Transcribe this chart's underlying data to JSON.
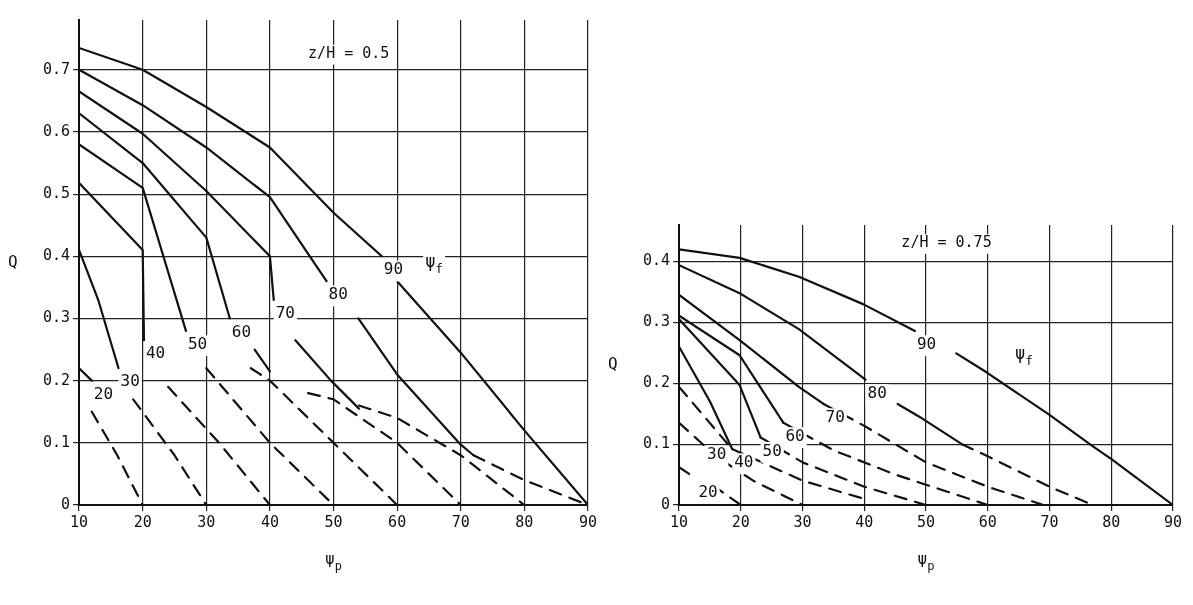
{
  "chart_data": [
    {
      "type": "line",
      "xlabel": "ψ$_{p}$",
      "ylabel": "Q",
      "xlim": [
        10,
        90
      ],
      "ylim": [
        0,
        0.78
      ],
      "xticks": [
        10,
        20,
        30,
        40,
        50,
        60,
        70,
        80,
        90
      ],
      "yticks": [
        0,
        0.1,
        0.2,
        0.3,
        0.4,
        0.5,
        0.6,
        0.7
      ],
      "grid": true,
      "legend": false,
      "marker": "none",
      "line_style": "solid",
      "annotations": [
        "z/H = 0.5",
        "ψ$_{f}$"
      ],
      "series": [
        {
          "name": "90",
          "color": "#111111",
          "x": [
            10,
            20,
            30,
            40,
            50,
            57.6,
            59,
            60,
            70,
            80,
            90
          ],
          "values": [
            0.735,
            0.7,
            0.64,
            0.575,
            0.47,
            0.4,
            null,
            0.36,
            0.245,
            0.12,
            0
          ]
        },
        {
          "name": "80",
          "color": "#111111",
          "x": [
            10,
            20,
            30,
            40,
            48.9,
            51,
            53.9,
            60,
            70,
            72
          ],
          "values": [
            0.7,
            0.643,
            0.575,
            0.495,
            0.36,
            null,
            0.3,
            0.21,
            0.097,
            0.08
          ]
        },
        {
          "name": "70",
          "color": "#111111",
          "x": [
            10,
            20,
            30,
            40,
            40.6,
            42,
            44,
            49.6,
            54
          ],
          "values": [
            0.665,
            0.597,
            0.505,
            0.4,
            0.33,
            null,
            0.265,
            0.2,
            0.155
          ]
        },
        {
          "name": "60",
          "color": "#111111",
          "x": [
            10,
            20,
            30,
            33.7,
            35,
            37.6,
            40
          ],
          "values": [
            0.63,
            0.55,
            0.43,
            0.3,
            null,
            0.25,
            0.215
          ]
        },
        {
          "name": "50",
          "color": "#111111",
          "x": [
            10,
            20,
            26.8
          ],
          "values": [
            0.58,
            0.51,
            0.28
          ]
        },
        {
          "name": "40",
          "color": "#111111",
          "x": [
            10,
            20,
            20.2
          ],
          "values": [
            0.518,
            0.41,
            0.265
          ]
        },
        {
          "name": "30",
          "color": "#111111",
          "x": [
            10,
            13,
            16.2
          ],
          "values": [
            0.41,
            0.33,
            0.22
          ]
        },
        {
          "name": "20",
          "color": "#111111",
          "x": [
            10,
            12
          ],
          "values": [
            0.22,
            0.2
          ]
        },
        {
          "color": "#111111",
          "line_style": "dashed",
          "x": [
            12,
            16,
            20
          ],
          "values": [
            0.15,
            0.08,
            0
          ]
        },
        {
          "color": "#111111",
          "line_style": "dashed",
          "x": [
            18.5,
            25,
            30
          ],
          "values": [
            0.17,
            0.08,
            0
          ]
        },
        {
          "color": "#111111",
          "line_style": "dashed",
          "x": [
            24,
            32,
            40
          ],
          "values": [
            0.19,
            0.1,
            0
          ]
        },
        {
          "color": "#111111",
          "line_style": "dashed",
          "x": [
            30,
            40,
            50
          ],
          "values": [
            0.22,
            0.1,
            0
          ]
        },
        {
          "color": "#111111",
          "line_style": "dashed",
          "x": [
            37,
            40,
            50,
            60
          ],
          "values": [
            0.22,
            0.2,
            0.1,
            0
          ]
        },
        {
          "color": "#111111",
          "line_style": "dashed",
          "x": [
            46,
            50,
            60,
            70
          ],
          "values": [
            0.18,
            0.17,
            0.1,
            0
          ]
        },
        {
          "color": "#111111",
          "line_style": "dashed",
          "x": [
            54,
            60,
            70,
            80
          ],
          "values": [
            0.16,
            0.14,
            0.08,
            0
          ]
        },
        {
          "color": "#111111",
          "line_style": "dashed",
          "x": [
            72,
            80,
            90
          ],
          "values": [
            0.08,
            0.04,
            0
          ]
        }
      ]
    },
    {
      "type": "line",
      "xlabel": "ψ$_{p}$",
      "ylabel": "Q",
      "xlim": [
        10,
        90
      ],
      "ylim": [
        0,
        0.46
      ],
      "xticks": [
        10,
        20,
        30,
        40,
        50,
        60,
        70,
        80,
        90
      ],
      "yticks": [
        0,
        0.1,
        0.2,
        0.3,
        0.4
      ],
      "grid": true,
      "legend": false,
      "marker": "none",
      "line_style": "solid",
      "annotations": [
        "z/H = 0.75",
        "ψ$_{f}$"
      ],
      "series": [
        {
          "name": "90",
          "color": "#111111",
          "x": [
            10,
            19.8,
            29.4,
            39.8,
            48.2,
            51,
            54.9,
            59.8,
            70,
            76.8,
            80.2,
            90
          ],
          "values": [
            0.42,
            0.406,
            0.375,
            0.33,
            0.286,
            null,
            0.249,
            0.218,
            0.148,
            0.098,
            0.074,
            0
          ]
        },
        {
          "name": "80",
          "color": "#111111",
          "x": [
            10,
            19.8,
            29.4,
            40.2,
            43,
            45.4,
            49.4,
            55.8
          ],
          "values": [
            0.394,
            0.348,
            0.289,
            0.206,
            null,
            0.166,
            0.142,
            0.1
          ]
        },
        {
          "name": "70",
          "color": "#111111",
          "x": [
            10,
            19.8,
            29.4,
            33.4
          ],
          "values": [
            0.345,
            0.271,
            0.194,
            0.166
          ]
        },
        {
          "name": "60",
          "color": "#111111",
          "x": [
            10,
            19.8,
            26.9
          ],
          "values": [
            0.311,
            0.246,
            0.135
          ]
        },
        {
          "name": "50",
          "color": "#111111",
          "x": [
            10,
            19.8,
            23.2
          ],
          "values": [
            0.305,
            0.197,
            0.111
          ]
        },
        {
          "name": "40",
          "color": "#111111",
          "x": [
            10,
            15,
            18.6
          ],
          "values": [
            0.26,
            0.17,
            0.092
          ]
        },
        {
          "name": "30",
          "color": "#111111",
          "line_style": "dashed",
          "x": [
            10,
            18.3
          ],
          "values": [
            0.194,
            0.095
          ]
        },
        {
          "name": "20",
          "color": "#111111",
          "line_style": "dashed",
          "x": [
            10,
            12.8,
            14,
            15.5,
            20
          ],
          "values": [
            0.062,
            0.043,
            null,
            0.032,
            0
          ]
        },
        {
          "color": "#111111",
          "line_style": "dashed",
          "x": [
            10,
            16,
            22,
            30
          ],
          "values": [
            0.135,
            0.08,
            0.04,
            0
          ]
        },
        {
          "color": "#111111",
          "line_style": "dashed",
          "x": [
            18.6,
            30,
            40
          ],
          "values": [
            0.092,
            0.04,
            0.01
          ]
        },
        {
          "color": "#111111",
          "line_style": "dashed",
          "x": [
            23.2,
            30,
            40,
            50
          ],
          "values": [
            0.111,
            0.07,
            0.03,
            0
          ]
        },
        {
          "color": "#111111",
          "line_style": "dashed",
          "x": [
            26.9,
            35,
            45,
            60
          ],
          "values": [
            0.135,
            0.09,
            0.05,
            0
          ]
        },
        {
          "color": "#111111",
          "line_style": "dashed",
          "x": [
            33.4,
            40,
            50,
            60,
            69
          ],
          "values": [
            0.166,
            0.13,
            0.07,
            0.03,
            0
          ]
        },
        {
          "color": "#111111",
          "line_style": "dashed",
          "x": [
            55.8,
            60,
            70,
            77
          ],
          "values": [
            0.1,
            0.08,
            0.03,
            0
          ]
        }
      ]
    }
  ]
}
